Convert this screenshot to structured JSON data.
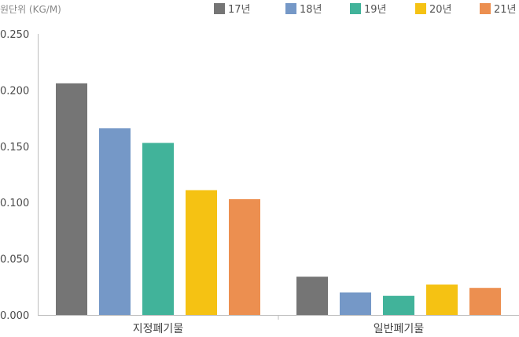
{
  "chart_data": {
    "type": "bar",
    "unit_label": "원단위 (KG/M)",
    "categories": [
      "지정폐기물",
      "일반폐기물"
    ],
    "series": [
      {
        "name": "17년",
        "color": "#757575",
        "values": [
          0.206,
          0.034
        ]
      },
      {
        "name": "18년",
        "color": "#7598c7",
        "values": [
          0.166,
          0.02
        ]
      },
      {
        "name": "19년",
        "color": "#41b39a",
        "values": [
          0.153,
          0.017
        ]
      },
      {
        "name": "20년",
        "color": "#f5c213",
        "values": [
          0.111,
          0.027
        ]
      },
      {
        "name": "21년",
        "color": "#ec8f50",
        "values": [
          0.103,
          0.024
        ]
      }
    ],
    "yticks": [
      "0.000",
      "0.050",
      "0.100",
      "0.150",
      "0.200",
      "0.250"
    ],
    "ylim": [
      0,
      0.25
    ],
    "grid": false,
    "legend_position": "top-right"
  }
}
